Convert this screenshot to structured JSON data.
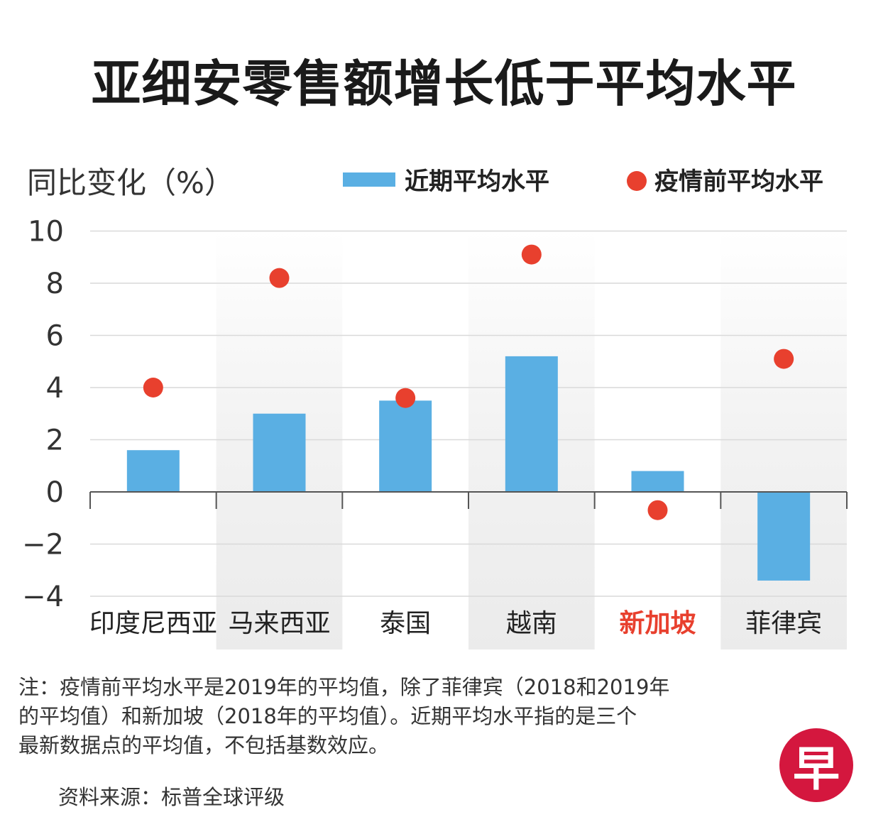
{
  "chart_data": {
    "type": "bar",
    "title": "亚细安零售额增长低于平均水平",
    "ylabel": "同比变化（%）",
    "xlabel": "",
    "ylim": [
      -4,
      10
    ],
    "yticks": [
      10,
      8,
      6,
      4,
      2,
      0,
      -2,
      -4
    ],
    "ytick_labels": [
      "10",
      "8",
      "6",
      "4",
      "2",
      "0",
      "−2",
      "−4"
    ],
    "categories": [
      "印度尼西亚",
      "马来西亚",
      "泰国",
      "越南",
      "新加坡",
      "菲律宾"
    ],
    "highlight_category": "新加坡",
    "series": [
      {
        "name": "近期平均水平",
        "kind": "bar",
        "color": "#5aafe3",
        "values": [
          1.6,
          3.0,
          3.5,
          5.2,
          0.8,
          -3.4
        ]
      },
      {
        "name": "疫情前平均水平",
        "kind": "dot",
        "color": "#e8402e",
        "values": [
          4.0,
          8.2,
          3.6,
          9.1,
          -0.7,
          5.1
        ]
      }
    ],
    "legend_position": "top",
    "grid": true
  },
  "notes": [
    "注：疫情前平均水平是2019年的平均值，除了菲律宾（2018和2019年",
    "的平均值）和新加坡（2018年的平均值）。近期平均水平指的是三个",
    "最新数据点的平均值，不包括基数效应。"
  ],
  "source": "资料来源：标普全球评级",
  "logo": {
    "char": "早",
    "color": "#d4173e"
  },
  "colors": {
    "highlight_text": "#e8402e",
    "band": "#ebebeb",
    "axis": "#555555",
    "grid": "#d9d9d9"
  }
}
